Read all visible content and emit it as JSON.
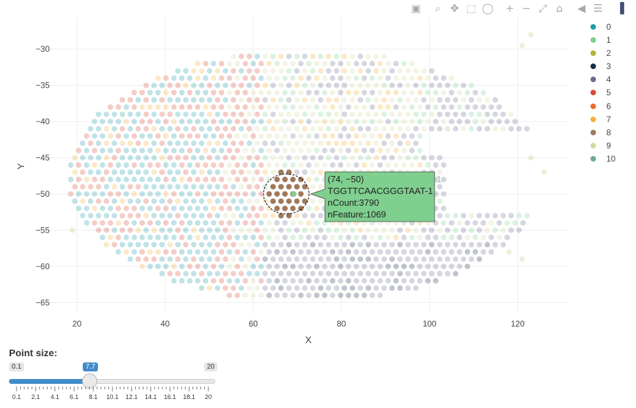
{
  "toolbar": {
    "buttons": [
      {
        "name": "camera-icon",
        "glyph": "▣"
      },
      {
        "name": "zoom-icon",
        "glyph": "⌕"
      },
      {
        "name": "pan-icon",
        "glyph": "✥"
      },
      {
        "name": "box-select-icon",
        "glyph": "⬚"
      },
      {
        "name": "lasso-icon",
        "glyph": "◯"
      },
      {
        "name": "zoom-in-icon",
        "glyph": "+"
      },
      {
        "name": "zoom-out-icon",
        "glyph": "−"
      },
      {
        "name": "autoscale-icon",
        "glyph": "⤢"
      },
      {
        "name": "reset-axes-icon",
        "glyph": "⌂"
      },
      {
        "name": "hover-closest-icon",
        "glyph": "◀"
      },
      {
        "name": "hover-compare-icon",
        "glyph": "☰"
      },
      {
        "name": "plotly-logo-icon",
        "glyph": "▐"
      }
    ]
  },
  "chart_data": {
    "type": "scatter",
    "xlabel": "X",
    "ylabel": "Y",
    "xlim": [
      13.5,
      131.5
    ],
    "ylim": [
      -66.5,
      -25.5
    ],
    "x_ticks": [
      20,
      40,
      60,
      80,
      100,
      120
    ],
    "y_ticks": [
      -30,
      -35,
      -40,
      -45,
      -50,
      -55,
      -60,
      -65
    ],
    "x_tick_labels": [
      "20",
      "40",
      "60",
      "80",
      "100",
      "120"
    ],
    "y_tick_labels": [
      "−30",
      "−35",
      "−40",
      "−45",
      "−50",
      "−55",
      "−60",
      "−65"
    ],
    "grid": true,
    "legend_position": "right",
    "series": [
      {
        "name": "0",
        "color": "#1f9aa8"
      },
      {
        "name": "1",
        "color": "#7fcf8f"
      },
      {
        "name": "2",
        "color": "#b2b23a"
      },
      {
        "name": "3",
        "color": "#18304a"
      },
      {
        "name": "4",
        "color": "#6b6b8e"
      },
      {
        "name": "5",
        "color": "#d84a3a"
      },
      {
        "name": "6",
        "color": "#ee6a2c"
      },
      {
        "name": "7",
        "color": "#f5b03c"
      },
      {
        "name": "8",
        "color": "#a0785a"
      },
      {
        "name": "9",
        "color": "#d4d8a0"
      },
      {
        "name": "10",
        "color": "#6faa8a"
      }
    ],
    "selected_series": "8",
    "hover": {
      "series": "1",
      "x": 74,
      "y": -50,
      "lines": [
        "(74, −50)",
        "TGGTTCAACGGGTAAT-1",
        "nCount:3790",
        "nFeature:1069"
      ],
      "series_label": "1"
    }
  },
  "slider": {
    "label": "Point size:",
    "min": 0.1,
    "max": 20,
    "value": 7.7,
    "min_label": "0.1",
    "max_label": "20",
    "value_label": "7.7",
    "tick_labels": [
      "0.1",
      "2.1",
      "4.1",
      "6.1",
      "8.1",
      "10.1",
      "12.1",
      "14.1",
      "16.1",
      "18.1",
      "20"
    ]
  }
}
